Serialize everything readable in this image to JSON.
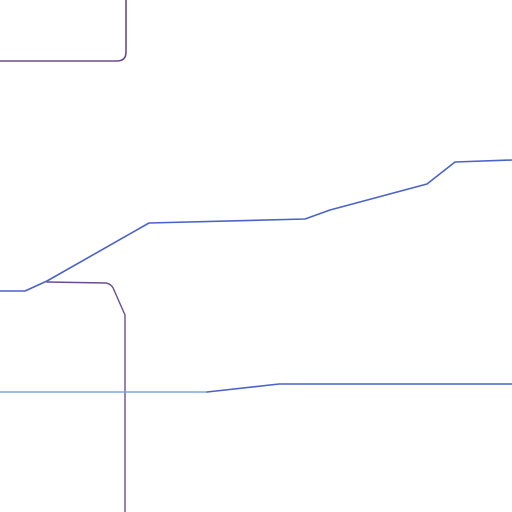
{
  "map": {
    "background_color": "#ffffff",
    "line_colors": {
      "purple_route": "#6b4c8f",
      "blue_route": "#4b63c9",
      "light_blue_route": "#7fa6de"
    }
  }
}
